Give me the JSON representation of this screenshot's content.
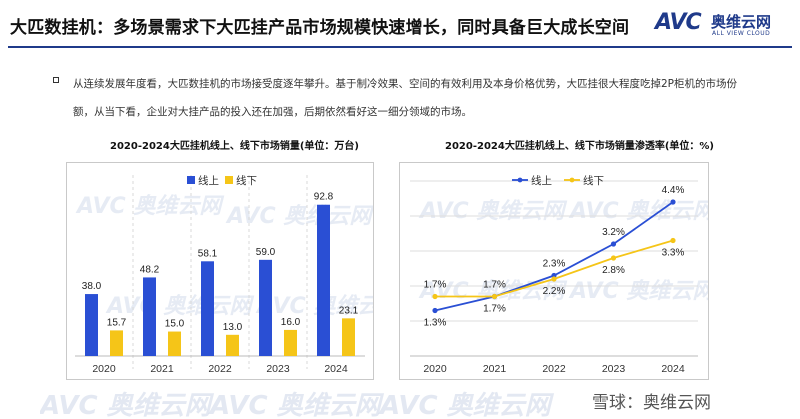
{
  "header": {
    "title": "大匹数挂机：多场景需求下大匹挂产品市场规模快速增长，同时具备巨大成长空间",
    "logo_mark": "AVC",
    "logo_cn": "奥维云网",
    "logo_en": "ALL VIEW CLOUD"
  },
  "body": {
    "text": "从连续发展年度看，大匹数挂机的市场接受度逐年攀升。基于制冷效果、空间的有效利用及本身价格优势，大匹挂很大程度吃掉2P柜机的市场份额，从当下看，企业对大挂产品的投入还在加强，后期依然看好这一细分领域的市场。"
  },
  "watermark": {
    "text": "AVC 奥维云网"
  },
  "footer": {
    "credit": "雪球：奥维云网"
  },
  "colors": {
    "online": "#2a4fd4",
    "offline": "#f5c518",
    "title_rule": "#1f3a8a",
    "grid": "#dddddd"
  },
  "chart_data": [
    {
      "type": "bar",
      "title": "2020-2024大匹挂机线上、线下市场销量(单位：万台)",
      "categories": [
        "2020",
        "2021",
        "2022",
        "2023",
        "2024"
      ],
      "series": [
        {
          "name": "线上",
          "values": [
            38.0,
            48.2,
            58.1,
            59.0,
            92.8
          ],
          "labels": [
            "38.0",
            "48.2",
            "58.1",
            "59.0",
            "92.8"
          ]
        },
        {
          "name": "线下",
          "values": [
            15.7,
            15.0,
            13.0,
            16.0,
            23.1
          ],
          "labels": [
            "15.7",
            "15.0",
            "13.0",
            "16.0",
            "23.1"
          ]
        }
      ],
      "ylim": [
        0,
        100
      ],
      "legend": "top-left",
      "grid": false
    },
    {
      "type": "line",
      "title": "2020-2024大匹挂机线上、线下市场销量渗透率(单位：%)",
      "categories": [
        "2020",
        "2021",
        "2022",
        "2023",
        "2024"
      ],
      "series": [
        {
          "name": "线上",
          "values": [
            1.3,
            1.7,
            2.3,
            3.2,
            4.4
          ],
          "labels": [
            "1.3%",
            "1.7%",
            "2.3%",
            "3.2%",
            "4.4%"
          ]
        },
        {
          "name": "线下",
          "values": [
            1.7,
            1.7,
            2.2,
            2.8,
            3.3
          ],
          "labels": [
            "1.7%",
            "1.7%",
            "2.2%",
            "2.8%",
            "3.3%"
          ]
        }
      ],
      "ylim": [
        0,
        5
      ],
      "legend": "top-left",
      "grid": true
    }
  ]
}
